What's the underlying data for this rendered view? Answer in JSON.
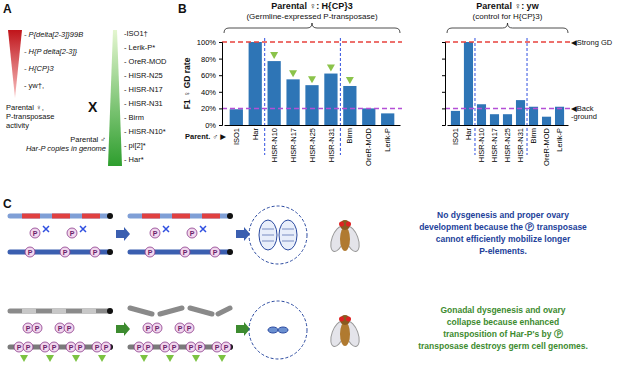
{
  "panel_a": {
    "label": "A",
    "female_lines": [
      "- P{delta[2-3]}99B",
      "- H{P delta[2-3]}",
      "- H{CP}3",
      "- yw†,"
    ],
    "female_caption": [
      "Parental ♀,",
      "P-transposase",
      "activity"
    ],
    "cross": "X",
    "male_lines": [
      "-ISO1†",
      "- Lerik-P*",
      "- OreR-MOD",
      "- HISR-N25",
      "- HISR-N17",
      "- HISR-N31",
      "- Birm",
      "- HISR-N10*",
      "- pi[2]*",
      "- Har*"
    ],
    "male_caption": [
      "Parental ♂",
      "Har-P copies in genome"
    ]
  },
  "panel_b": {
    "label": "B"
  },
  "chart_data": [
    {
      "type": "bar",
      "title": "Parental ♀: H{CP}3",
      "subtitle": "(Germline-expressed P-transposase)",
      "y_label": "F1 ♀ GD rate",
      "x_label": "Parent. ♂ ▶",
      "categories": [
        "ISO1",
        "Har",
        "HISR-N10",
        "HISR-N17",
        "HISR-N25",
        "HISR-N31",
        "Birm",
        "OreR-MOD",
        "Lerik-P"
      ],
      "values": [
        19,
        100,
        77,
        55,
        48,
        62,
        47,
        20,
        14
      ],
      "color": "#2e75b6",
      "ylim": [
        0,
        100
      ],
      "yticks": [
        {
          "value": 0,
          "label": "0%"
        },
        {
          "value": 20,
          "label": "20%"
        },
        {
          "value": 40,
          "label": "40%"
        },
        {
          "value": 60,
          "label": "60%"
        },
        {
          "value": 80,
          "label": "80%"
        },
        {
          "value": 100,
          "label": "100%"
        }
      ],
      "reference_lines": [
        {
          "value": 100,
          "color": "#e8413c"
        },
        {
          "value": 20,
          "color": "#b44fd6"
        }
      ],
      "group_breaks": [
        2,
        6
      ],
      "triangles": [
        "HISR-N10",
        "HISR-N17",
        "HISR-N25",
        "HISR-N31",
        "Birm"
      ]
    },
    {
      "type": "bar",
      "title": "Parental ♀: yw",
      "subtitle": "(control for H{CP}3)",
      "categories": [
        "ISO1",
        "Har",
        "HISR-N10",
        "HISR-N17",
        "HISR-N25",
        "HISR-N31",
        "Birm",
        "OreR-MOD",
        "Lerik-P"
      ],
      "values": [
        17,
        100,
        25,
        13,
        13,
        30,
        22,
        10,
        22
      ],
      "color": "#2e75b6",
      "ylim": [
        0,
        100
      ],
      "yticks": [
        0,
        20,
        40,
        60,
        80,
        100
      ],
      "tick_labels": "x",
      "reference_lines": [
        {
          "value": 100,
          "color": "#e8413c",
          "label": [
            "◀Strong GD"
          ]
        },
        {
          "value": 20,
          "color": "#b44fd6",
          "label": [
            "◀Back",
            "-ground"
          ]
        }
      ],
      "group_breaks": [
        2,
        6
      ]
    }
  ],
  "panel_c": {
    "label": "C",
    "p_symbol": "P",
    "rows": [
      {
        "text": [
          "No dysgenesis and proper ovary",
          "development because the Ⓟ transposase",
          "cannot efficiently mobilize longer",
          "P-elements."
        ],
        "color": "#233f9a"
      },
      {
        "text": [
          "Gonadal dysgenesis and ovary",
          "collapse because enhanced",
          "transposition of Har-P's by Ⓟ",
          "transposase destroys germ cell genomes."
        ],
        "color": "#3d8b2f"
      }
    ]
  }
}
